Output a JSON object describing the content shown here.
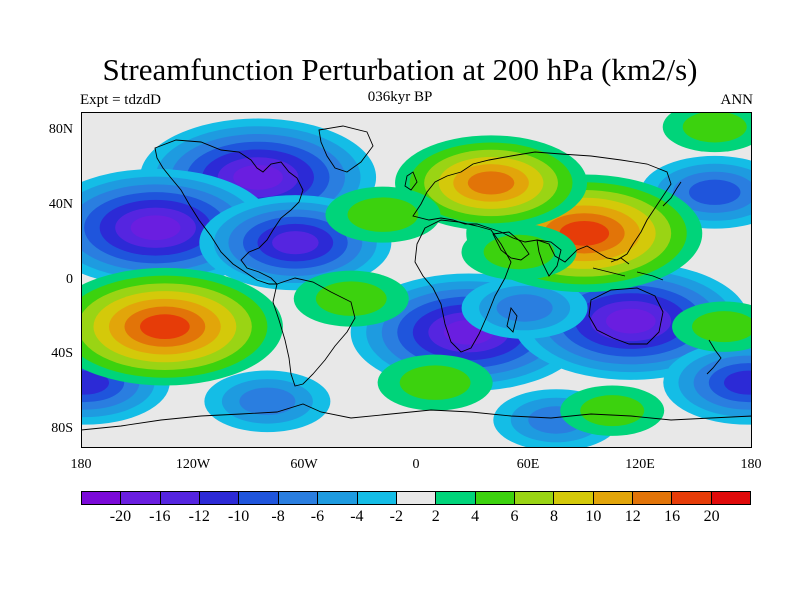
{
  "title": "Streamfunction Perturbation at 200 hPa (km2/s)",
  "subtitle_left": "Expt = tdzdD",
  "subtitle_center": "036kyr BP",
  "subtitle_right": "ANN",
  "lat_labels": [
    "80N",
    "40N",
    "0",
    "40S",
    "80S"
  ],
  "lon_labels": [
    "180",
    "120W",
    "60W",
    "0",
    "60E",
    "120E",
    "180"
  ],
  "colorbar": {
    "colors": [
      "#7b0ad8",
      "#6a1ee0",
      "#5525e0",
      "#2c2ad6",
      "#1f55dc",
      "#2a7ee0",
      "#1e9be0",
      "#14bde6",
      "#e8e8e8",
      "#00d47a",
      "#3cd20e",
      "#9ad414",
      "#d4c90a",
      "#e2a50a",
      "#e27408",
      "#e63c08",
      "#e00a0a"
    ],
    "labels": [
      "-20",
      "-16",
      "-12",
      "-10",
      "-8",
      "-6",
      "-4",
      "-2",
      "2",
      "4",
      "6",
      "8",
      "10",
      "12",
      "16",
      "20"
    ]
  },
  "anomalies": [
    {
      "name": "north-america-low",
      "lon": -85,
      "lat": 55,
      "strength": -16
    },
    {
      "name": "north-pacific-low",
      "lon": -140,
      "lat": 28,
      "strength": -16
    },
    {
      "name": "west-pacific-low",
      "lon": 160,
      "lat": 47,
      "strength": -8
    },
    {
      "name": "caribbean-low",
      "lon": -65,
      "lat": 20,
      "strength": -12
    },
    {
      "name": "south-africa-low",
      "lon": 28,
      "lat": -28,
      "strength": -16
    },
    {
      "name": "australia-low",
      "lon": 115,
      "lat": -22,
      "strength": -16
    },
    {
      "name": "south-indian-ocean-low",
      "lon": 58,
      "lat": -15,
      "strength": -6
    },
    {
      "name": "southern-ocean-low-1",
      "lon": -80,
      "lat": -65,
      "strength": -6
    },
    {
      "name": "southern-ocean-low-2",
      "lon": 75,
      "lat": -75,
      "strength": -6
    },
    {
      "name": "far-southeast-low",
      "lon": 178,
      "lat": -55,
      "strength": -10
    },
    {
      "name": "far-southwest-low",
      "lon": -178,
      "lat": -55,
      "strength": -10
    },
    {
      "name": "asia-high",
      "lon": 90,
      "lat": 25,
      "strength": 16
    },
    {
      "name": "europe-high",
      "lon": 40,
      "lat": 52,
      "strength": 12
    },
    {
      "name": "south-pacific-high",
      "lon": -135,
      "lat": -25,
      "strength": 16
    },
    {
      "name": "south-america-high",
      "lon": -35,
      "lat": -10,
      "strength": 5
    },
    {
      "name": "atlantic-high",
      "lon": -18,
      "lat": 35,
      "strength": 5
    },
    {
      "name": "indian-ocean-high",
      "lon": 55,
      "lat": 15,
      "strength": 5
    },
    {
      "name": "pacific-high",
      "lon": 165,
      "lat": -25,
      "strength": 4
    },
    {
      "name": "southern-band-high-1",
      "lon": 10,
      "lat": -55,
      "strength": 5
    },
    {
      "name": "southern-band-high-2",
      "lon": 105,
      "lat": -70,
      "strength": 4
    },
    {
      "name": "arctic-high",
      "lon": 160,
      "lat": 82,
      "strength": 4
    }
  ]
}
